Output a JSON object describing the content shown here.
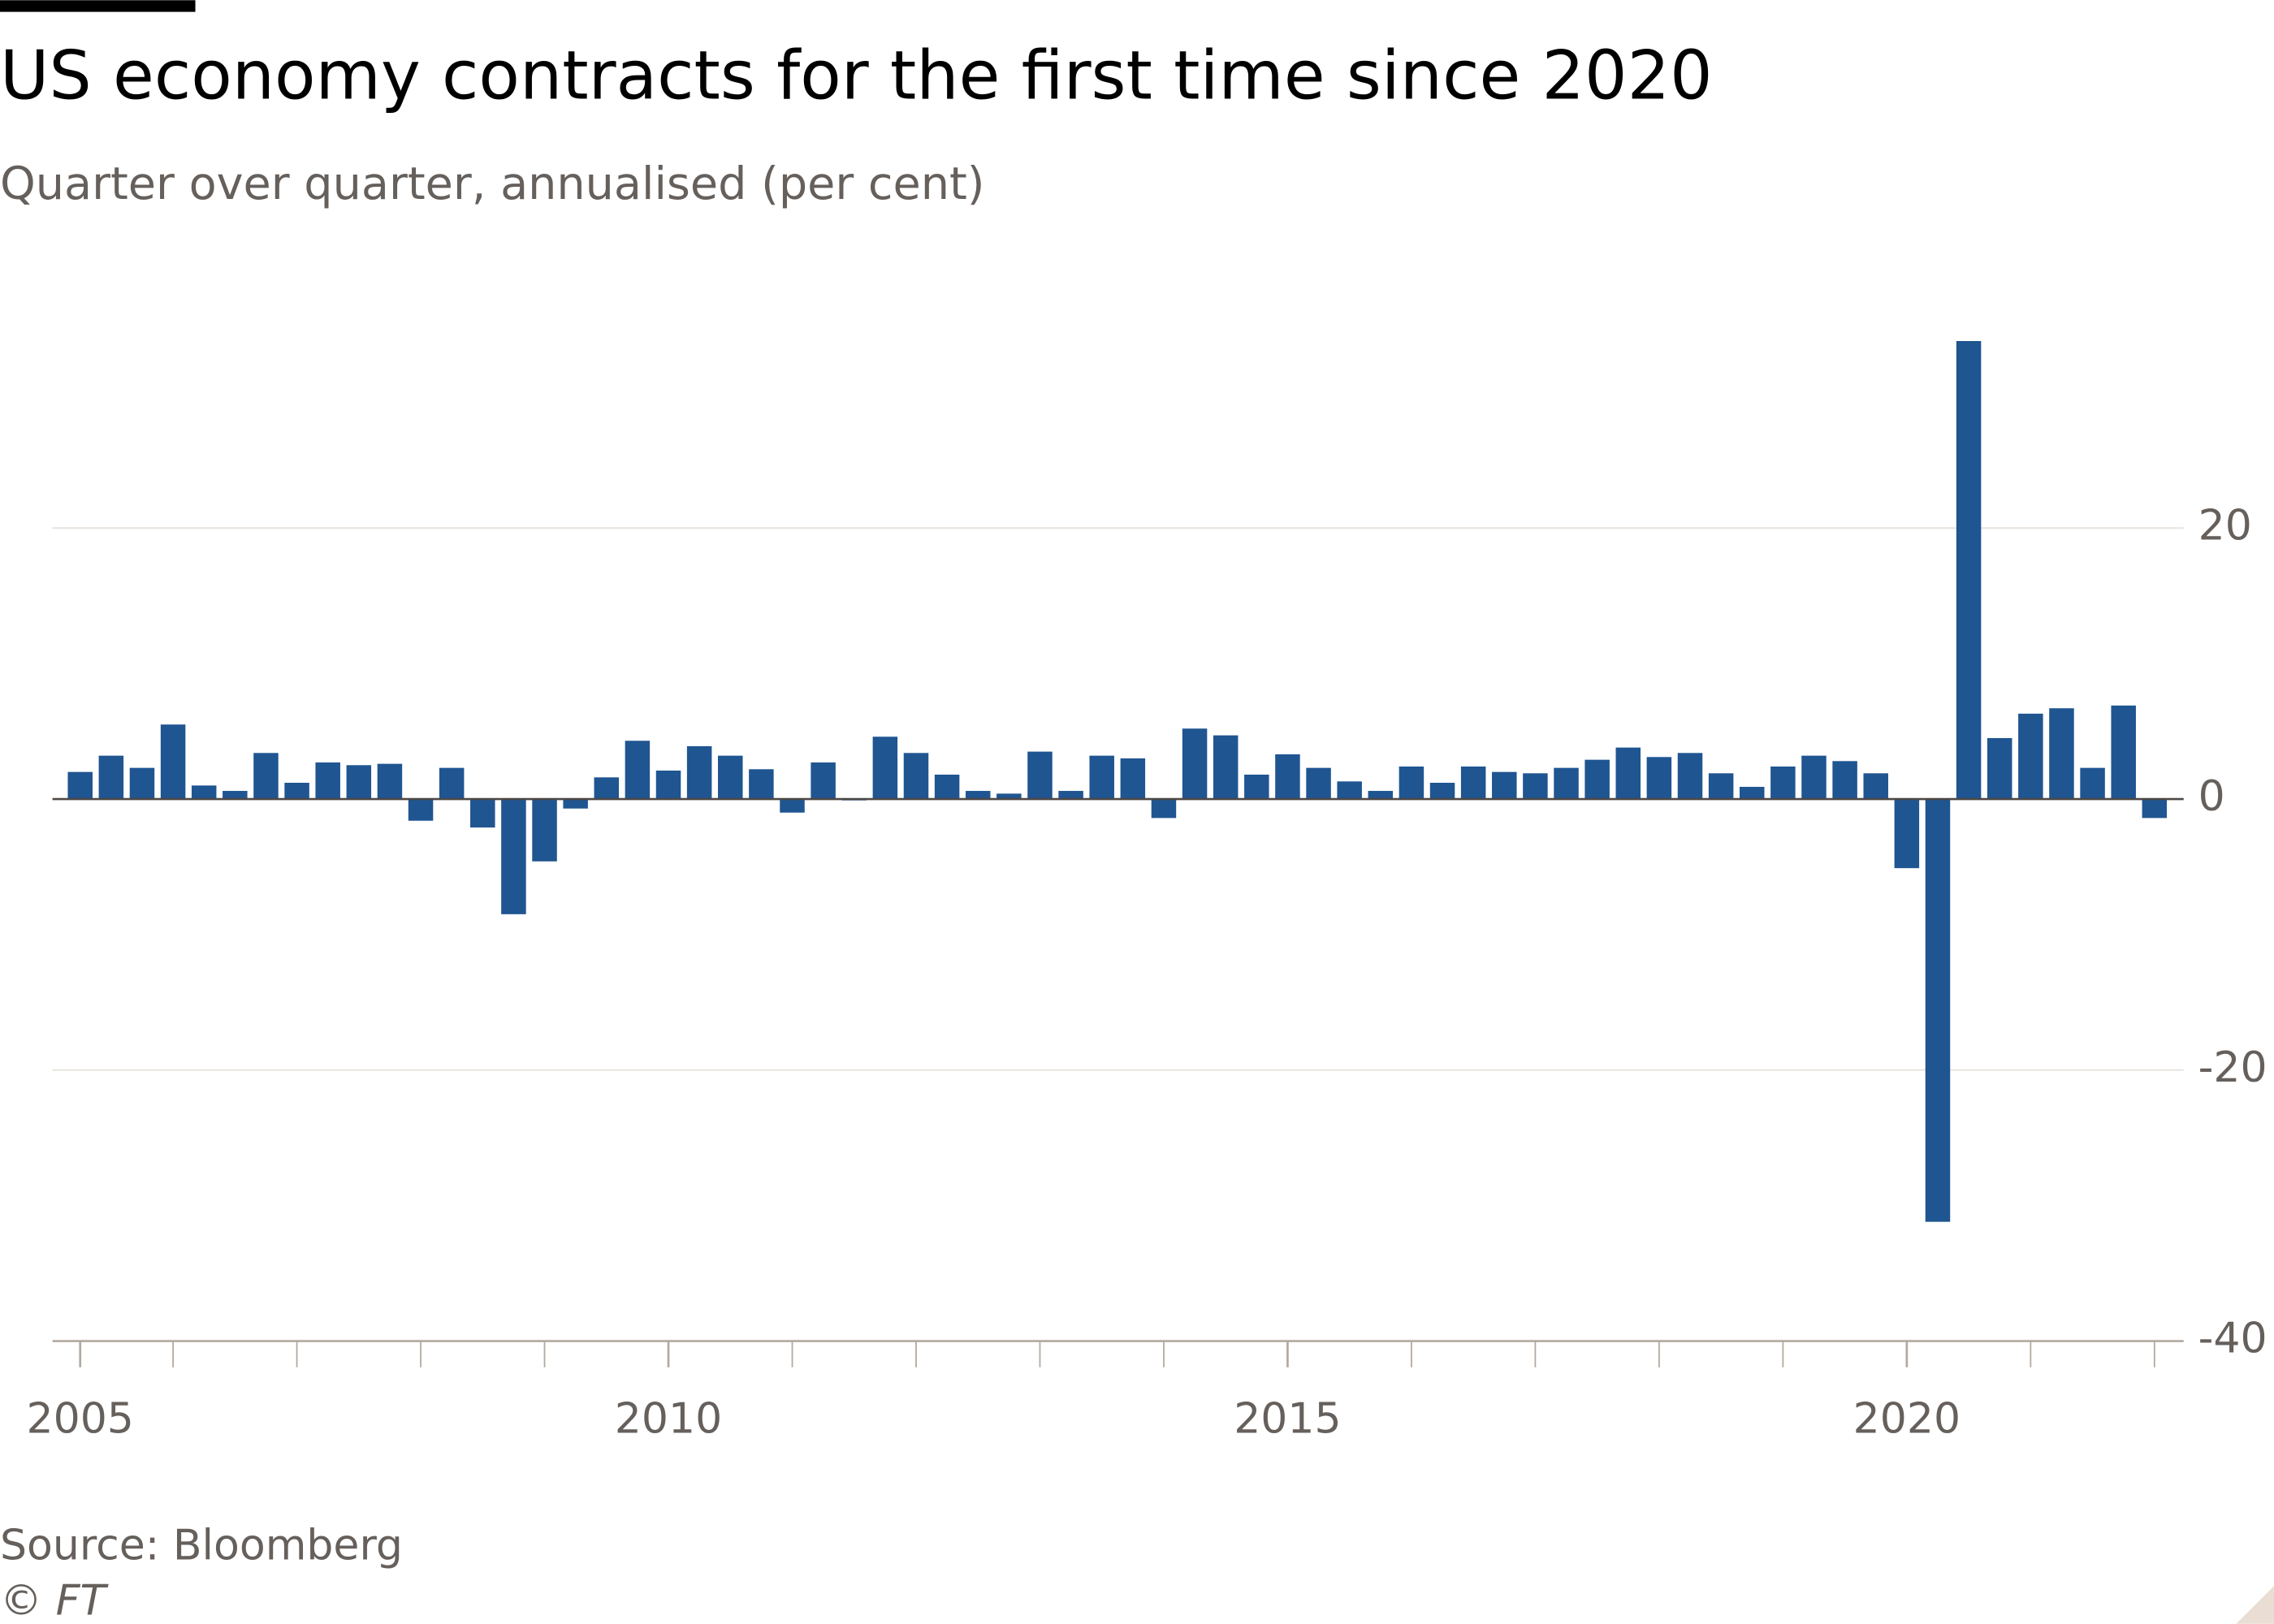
{
  "chart_data": {
    "type": "bar",
    "title": "US economy contracts for the first time since 2020",
    "subtitle": "Quarter over quarter, annualised (per cent)",
    "source": "Source: Bloomberg",
    "credit": "© FT",
    "color": "#1f5591",
    "categories": [
      "2005",
      null,
      null,
      null,
      null,
      null,
      null,
      null,
      null,
      null,
      null,
      null,
      null,
      null,
      null,
      null,
      null,
      null,
      null,
      "2010",
      null,
      null,
      null,
      null,
      null,
      null,
      null,
      null,
      null,
      null,
      null,
      null,
      null,
      null,
      null,
      null,
      null,
      null,
      null,
      "2015",
      null,
      null,
      null,
      null,
      null,
      null,
      null,
      null,
      null,
      null,
      null,
      null,
      null,
      null,
      null,
      null,
      null,
      null,
      null,
      "2020",
      null,
      null,
      null,
      null,
      null,
      null,
      null,
      null
    ],
    "values": [
      2.0,
      3.2,
      2.3,
      5.5,
      1.0,
      0.6,
      3.4,
      1.2,
      2.7,
      2.5,
      2.6,
      -1.6,
      2.3,
      -2.1,
      -8.5,
      -4.6,
      -0.7,
      1.6,
      4.3,
      2.1,
      3.9,
      3.2,
      2.2,
      -1.0,
      2.7,
      -0.1,
      4.6,
      3.4,
      1.8,
      0.6,
      0.4,
      3.5,
      0.6,
      3.2,
      3.0,
      -1.4,
      5.2,
      4.7,
      1.8,
      3.3,
      2.3,
      1.3,
      0.6,
      2.4,
      1.2,
      2.4,
      2.0,
      1.9,
      2.3,
      2.9,
      3.8,
      3.1,
      3.4,
      1.9,
      0.9,
      2.4,
      3.2,
      2.8,
      1.9,
      -5.1,
      -31.2,
      33.8,
      4.5,
      6.3,
      6.7,
      2.3,
      6.9,
      -1.4
    ],
    "ylim": [
      -40,
      34
    ],
    "yticks": [
      -40,
      -20,
      0,
      20
    ],
    "grid": true
  }
}
